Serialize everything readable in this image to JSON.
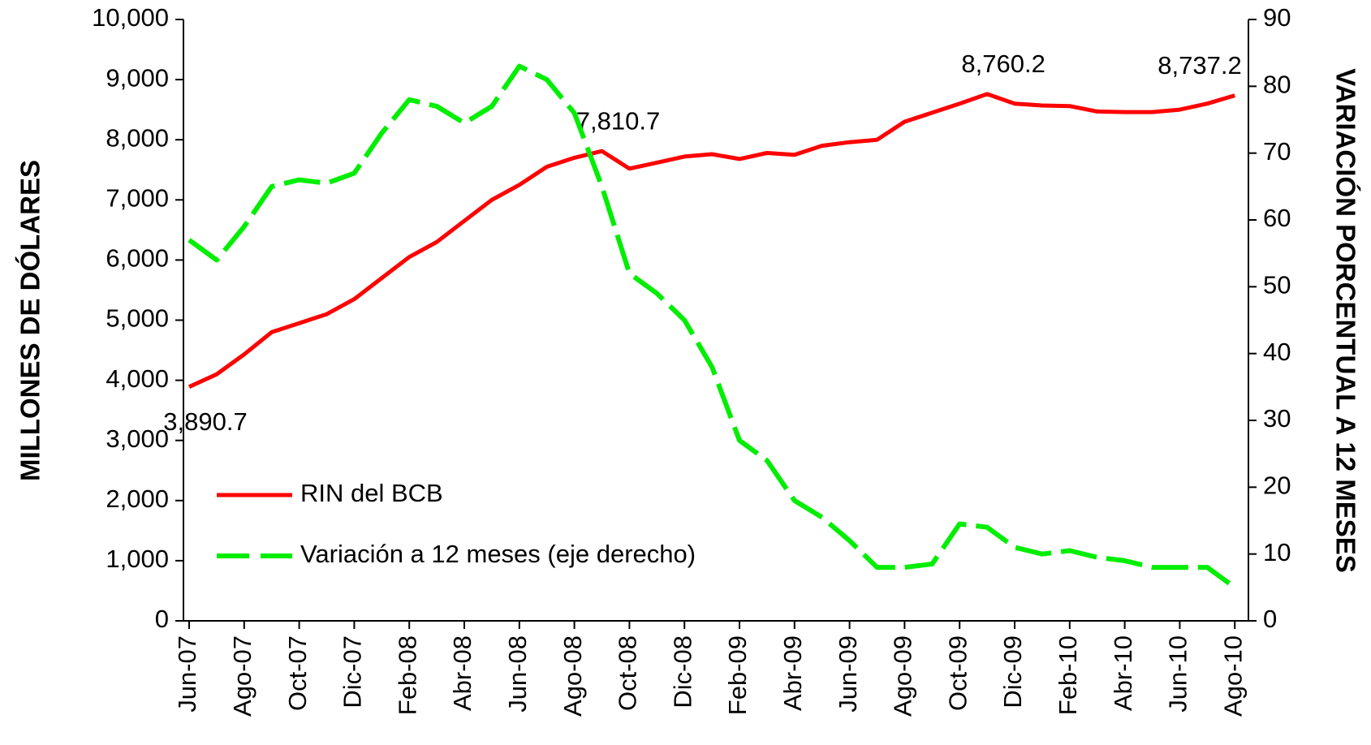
{
  "chart_data": {
    "type": "line",
    "y_label": "MILLONES DE DÓLARES",
    "y2_label": "VARIACIÓN PORCENTUAL A 12 MESES",
    "categories": [
      "Jun-07",
      null,
      "Ago-07",
      null,
      "Oct-07",
      null,
      "Dic-07",
      null,
      "Feb-08",
      null,
      "Abr-08",
      null,
      "Jun-08",
      null,
      "Ago-08",
      null,
      "Oct-08",
      null,
      "Dic-08",
      null,
      "Feb-09",
      null,
      "Abr-09",
      null,
      "Jun-09",
      null,
      "Ago-09",
      null,
      "Oct-09",
      null,
      "Dic-09",
      null,
      "Feb-10",
      null,
      "Abr-10",
      null,
      "Jun-10",
      null,
      "Ago-10"
    ],
    "series": [
      {
        "name": "RIN del BCB",
        "color": "#ff0000",
        "dashed": false,
        "values": [
          3890.7,
          4100,
          4430,
          4800,
          4950,
          5100,
          5350,
          5700,
          6050,
          6300,
          6650,
          7000,
          7250,
          7550,
          7700,
          7810.7,
          7520,
          7620,
          7720,
          7760,
          7680,
          7780,
          7750,
          7900,
          7960,
          8000,
          8300,
          8450,
          8600,
          8760.2,
          8600,
          8570,
          8560,
          8470,
          8460,
          8460,
          8500,
          8600,
          8737.2
        ],
        "value_labels": [
          "3,890.7",
          null,
          null,
          null,
          null,
          null,
          null,
          null,
          null,
          null,
          null,
          null,
          null,
          null,
          null,
          "7,810.7",
          null,
          null,
          null,
          null,
          null,
          null,
          null,
          null,
          null,
          null,
          null,
          null,
          null,
          "8,760.2",
          null,
          null,
          null,
          null,
          null,
          null,
          null,
          null,
          "8,737.2"
        ]
      },
      {
        "name": "Variación a 12 meses (eje derecho)",
        "color": "#00ee00",
        "dashed": true,
        "axis": "y2",
        "values": [
          57,
          54,
          59,
          65,
          66,
          65.5,
          67,
          73,
          78,
          77,
          74.5,
          77,
          83,
          81,
          76,
          65,
          52,
          49,
          45,
          38,
          27,
          24,
          18,
          15.5,
          12,
          8,
          8,
          8.5,
          14.5,
          14,
          11,
          10,
          10.5,
          9.5,
          9,
          8,
          8,
          8,
          5
        ]
      }
    ],
    "ylim": [
      0,
      10000
    ],
    "yticks": [
      0,
      {
        "value": 1000,
        "label": "1,000"
      },
      {
        "value": 2000,
        "label": "2,000"
      },
      {
        "value": 3000,
        "label": "3,000"
      },
      {
        "value": 4000,
        "label": "4,000"
      },
      {
        "value": 5000,
        "label": "5,000"
      },
      {
        "value": 6000,
        "label": "6,000"
      },
      {
        "value": 7000,
        "label": "7,000"
      },
      {
        "value": 8000,
        "label": "8,000"
      },
      {
        "value": 9000,
        "label": "9,000"
      },
      {
        "value": 10000,
        "label": "10,000"
      }
    ],
    "y2lim": [
      0,
      90
    ],
    "y2ticks": [
      0,
      10,
      20,
      30,
      40,
      50,
      60,
      70,
      80,
      90
    ],
    "grid": false
  }
}
